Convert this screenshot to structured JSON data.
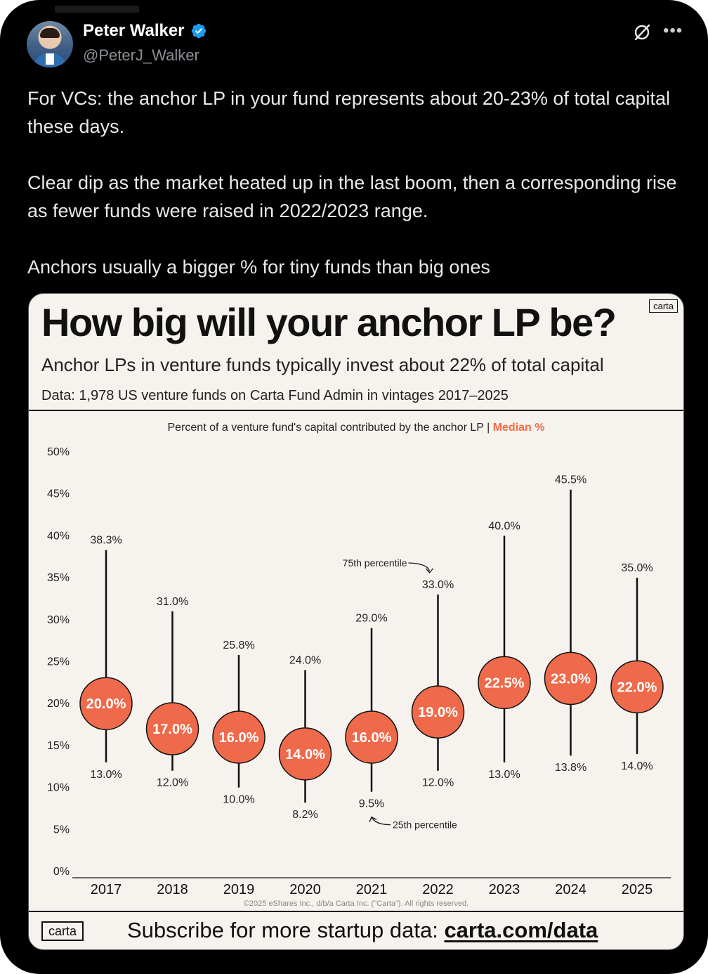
{
  "post": {
    "author_name": "Peter Walker",
    "author_handle": "@PeterJ_Walker",
    "paragraphs": [
      "For VCs: the anchor LP in your fund represents about 20-23% of total capital these days.",
      "Clear dip as the market heated up in the last boom, then a corresponding rise as fewer funds were raised in 2022/2023 range.",
      "Anchors usually a bigger % for tiny funds than big ones"
    ],
    "icons": [
      "verified-badge-icon",
      "grok-icon",
      "more-options-icon"
    ]
  },
  "card": {
    "brand_badge": "carta",
    "title": "How big will your anchor LP be?",
    "subtitle": "Anchor LPs in venture funds typically invest about 22% of total capital",
    "data_note": "Data: 1,978 US venture funds on Carta Fund Admin in vintages 2017–2025",
    "copyright": "©2025 eShares Inc., d/b/a Carta Inc. (\"Carta\"). All rights reserved.",
    "footer_brand": "carta",
    "footer_text": "Subscribe for more startup data: ",
    "footer_link": "carta.com/data"
  },
  "chart_data": {
    "type": "range-dot",
    "title": "Percent of a venture fund's capital contributed by the anchor LP | ",
    "title_highlight": "Median %",
    "categories": [
      "2017",
      "2018",
      "2019",
      "2020",
      "2021",
      "2022",
      "2023",
      "2024",
      "2025"
    ],
    "series": [
      {
        "name": "Median %",
        "values": [
          20.0,
          17.0,
          16.0,
          14.0,
          16.0,
          19.0,
          22.5,
          23.0,
          22.0
        ]
      },
      {
        "name": "75th percentile",
        "values": [
          38.3,
          31.0,
          25.8,
          24.0,
          29.0,
          33.0,
          40.0,
          45.5,
          35.0
        ]
      },
      {
        "name": "25th percentile",
        "values": [
          13.0,
          12.0,
          10.0,
          8.2,
          9.5,
          12.0,
          13.0,
          13.8,
          14.0
        ]
      }
    ],
    "yticks": [
      "0%",
      "5%",
      "10%",
      "15%",
      "20%",
      "25%",
      "30%",
      "35%",
      "40%",
      "45%",
      "50%"
    ],
    "ylim": [
      0,
      50
    ],
    "annotations": [
      {
        "text": "75th percentile",
        "category": "2022"
      },
      {
        "text": "25th percentile",
        "category": "2021"
      }
    ],
    "colors": {
      "median": "#ee6a4b",
      "highlight": "#f26b43",
      "line": "#111111"
    }
  }
}
